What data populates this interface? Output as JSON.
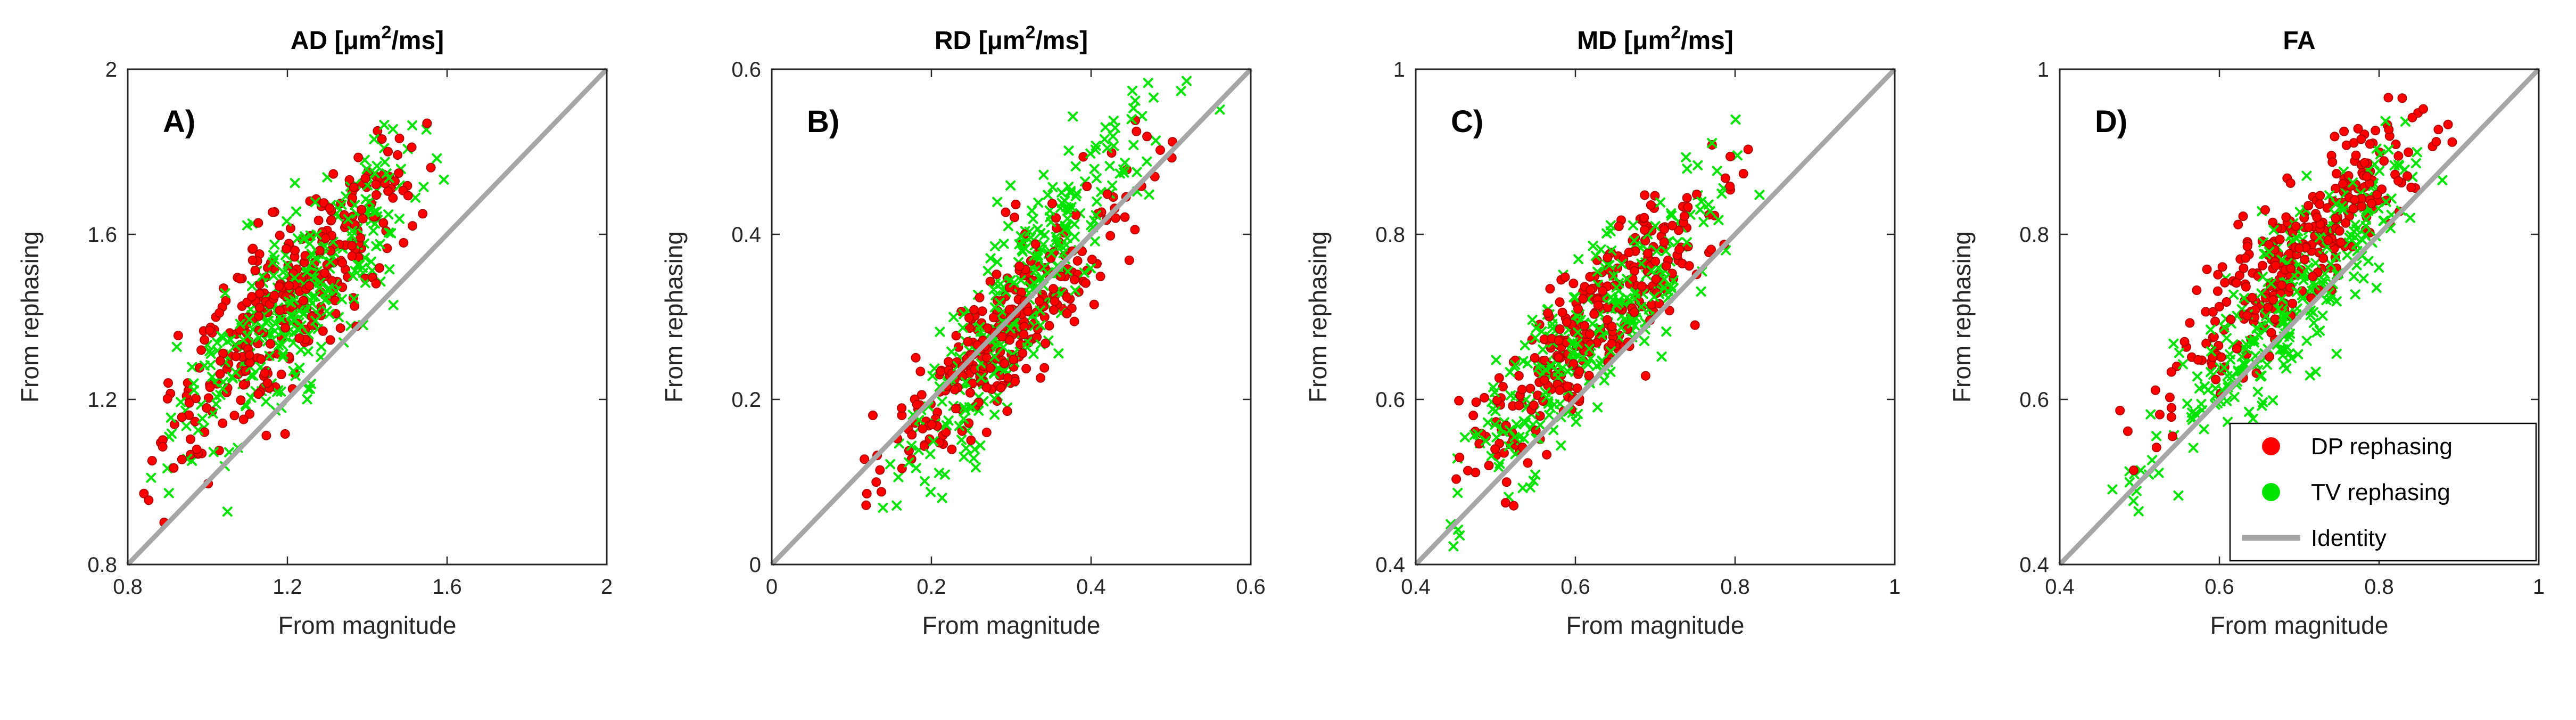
{
  "figure": {
    "background": "#ffffff",
    "xlabel": "From magnitude",
    "ylabel": "From rephasing"
  },
  "colors": {
    "axis": "#262626",
    "identity": "#a6a6a6",
    "dp_red": "#ff0000",
    "dp_red_edge": "#b40000",
    "tv_green": "#00e400",
    "title_black": "#000000"
  },
  "chart_data": [
    {
      "type": "scatter",
      "panel_label": "A)",
      "title": "AD [μm²/ms]",
      "title_segments": [
        {
          "t": "AD [μm"
        },
        {
          "t": "2",
          "sup": true
        },
        {
          "t": "/ms]"
        }
      ],
      "xlabel": "From magnitude",
      "ylabel": "From rephasing",
      "xlim": [
        0.8,
        2
      ],
      "ylim": [
        0.8,
        2
      ],
      "xticks": [
        0.8,
        1.2,
        1.6,
        2
      ],
      "xtick_labels": [
        "0.8",
        "1.2",
        "1.6",
        "2"
      ],
      "yticks": [
        0.8,
        1.2,
        1.6,
        2
      ],
      "ytick_labels": [
        "0.8",
        "1.2",
        "1.6",
        "2"
      ],
      "grid": false,
      "identity_line": true,
      "series": [
        {
          "key": "dp",
          "name": "DP rephasing",
          "marker": "dot",
          "color": "#ff0000",
          "edge": "#b40000",
          "n": 330,
          "seed": 101,
          "x_mean": 1.22,
          "x_sd": 0.155,
          "x_min": 0.83,
          "x_max": 1.66,
          "slope": 1.0,
          "intercept": 0.245,
          "noise": 0.105,
          "y_min": 0.82,
          "y_max": 1.92
        },
        {
          "key": "tv",
          "name": "TV rephasing",
          "marker": "x",
          "color": "#00e400",
          "edge": "#00a800",
          "n": 330,
          "seed": 102,
          "x_mean": 1.23,
          "x_sd": 0.15,
          "x_min": 0.85,
          "x_max": 1.62,
          "slope": 1.0,
          "intercept": 0.21,
          "noise": 0.105,
          "y_min": 0.82,
          "y_max": 1.9
        }
      ]
    },
    {
      "type": "scatter",
      "panel_label": "B)",
      "title": "RD [μm²/ms]",
      "title_segments": [
        {
          "t": "RD [μm"
        },
        {
          "t": "2",
          "sup": true
        },
        {
          "t": "/ms]"
        }
      ],
      "xlabel": "From magnitude",
      "ylabel": "From rephasing",
      "xlim": [
        0,
        0.6
      ],
      "ylim": [
        0,
        0.6
      ],
      "xticks": [
        0,
        0.2,
        0.4,
        0.6
      ],
      "xtick_labels": [
        "0",
        "0.2",
        "0.4",
        "0.6"
      ],
      "yticks": [
        0,
        0.2,
        0.4,
        0.6
      ],
      "ytick_labels": [
        "0",
        "0.2",
        "0.4",
        "0.6"
      ],
      "grid": false,
      "identity_line": true,
      "series": [
        {
          "key": "dp",
          "name": "DP rephasing",
          "marker": "dot",
          "color": "#ff0000",
          "edge": "#b40000",
          "n": 300,
          "seed": 201,
          "x_mean": 0.3,
          "x_sd": 0.075,
          "x_min": 0.1,
          "x_max": 0.57,
          "slope": 1.05,
          "intercept": -0.02,
          "noise": 0.042,
          "y_min": 0.04,
          "y_max": 0.58
        },
        {
          "key": "tv",
          "name": "TV rephasing",
          "marker": "x",
          "color": "#00e400",
          "edge": "#00a800",
          "n": 300,
          "seed": 202,
          "x_mean": 0.31,
          "x_sd": 0.075,
          "x_min": 0.11,
          "x_max": 0.58,
          "slope": 1.45,
          "intercept": -0.125,
          "noise": 0.05,
          "y_min": 0.03,
          "y_max": 0.59
        }
      ]
    },
    {
      "type": "scatter",
      "panel_label": "C)",
      "title": "MD [μm²/ms]",
      "title_segments": [
        {
          "t": "MD [μm"
        },
        {
          "t": "2",
          "sup": true
        },
        {
          "t": "/ms]"
        }
      ],
      "xlabel": "From magnitude",
      "ylabel": "From rephasing",
      "xlim": [
        0.4,
        1
      ],
      "ylim": [
        0.4,
        1
      ],
      "xticks": [
        0.4,
        0.6,
        0.8,
        1
      ],
      "xtick_labels": [
        "0.4",
        "0.6",
        "0.8",
        "1"
      ],
      "yticks": [
        0.4,
        0.6,
        0.8,
        1
      ],
      "ytick_labels": [
        "0.4",
        "0.6",
        "0.8",
        "1"
      ],
      "grid": false,
      "identity_line": true,
      "series": [
        {
          "key": "dp",
          "name": "DP rephasing",
          "marker": "dot",
          "color": "#ff0000",
          "edge": "#b40000",
          "n": 300,
          "seed": 301,
          "x_mean": 0.615,
          "x_sd": 0.082,
          "x_min": 0.43,
          "x_max": 0.86,
          "slope": 1.0,
          "intercept": 0.072,
          "noise": 0.042,
          "y_min": 0.42,
          "y_max": 0.99
        },
        {
          "key": "tv",
          "name": "TV rephasing",
          "marker": "x",
          "color": "#00e400",
          "edge": "#00a800",
          "n": 300,
          "seed": 302,
          "x_mean": 0.625,
          "x_sd": 0.082,
          "x_min": 0.44,
          "x_max": 0.84,
          "slope": 1.0,
          "intercept": 0.062,
          "noise": 0.05,
          "y_min": 0.42,
          "y_max": 0.97
        }
      ]
    },
    {
      "type": "scatter",
      "panel_label": "D)",
      "title": "FA",
      "title_segments": [
        {
          "t": "FA"
        }
      ],
      "xlabel": "From magnitude",
      "ylabel": "From rephasing",
      "xlim": [
        0.4,
        1
      ],
      "ylim": [
        0.4,
        1
      ],
      "xticks": [
        0.4,
        0.6,
        0.8,
        1
      ],
      "xtick_labels": [
        "0.4",
        "0.6",
        "0.8",
        "1"
      ],
      "yticks": [
        0.4,
        0.6,
        0.8,
        1
      ],
      "ytick_labels": [
        "0.4",
        "0.6",
        "0.8",
        "1"
      ],
      "grid": false,
      "identity_line": true,
      "series": [
        {
          "key": "dp",
          "name": "DP rephasing",
          "marker": "dot",
          "color": "#ff0000",
          "edge": "#b40000",
          "n": 300,
          "seed": 401,
          "x_mean": 0.7,
          "x_sd": 0.082,
          "x_min": 0.45,
          "x_max": 0.9,
          "slope": 1.0,
          "intercept": 0.078,
          "noise": 0.04,
          "y_min": 0.43,
          "y_max": 0.97
        },
        {
          "key": "tv",
          "name": "TV rephasing",
          "marker": "x",
          "color": "#00e400",
          "edge": "#00a800",
          "n": 300,
          "seed": 402,
          "x_mean": 0.7,
          "x_sd": 0.085,
          "x_min": 0.46,
          "x_max": 0.89,
          "slope": 1.0,
          "intercept": 0.032,
          "noise": 0.048,
          "y_min": 0.43,
          "y_max": 0.96
        }
      ],
      "legend": {
        "position": "bottom-right",
        "entries": [
          {
            "label": "DP rephasing",
            "marker": "dot",
            "color": "#ff0000"
          },
          {
            "label": "TV rephasing",
            "marker": "dot",
            "color": "#00e400"
          },
          {
            "label": "Identity",
            "marker": "line",
            "color": "#a6a6a6"
          }
        ]
      }
    }
  ]
}
